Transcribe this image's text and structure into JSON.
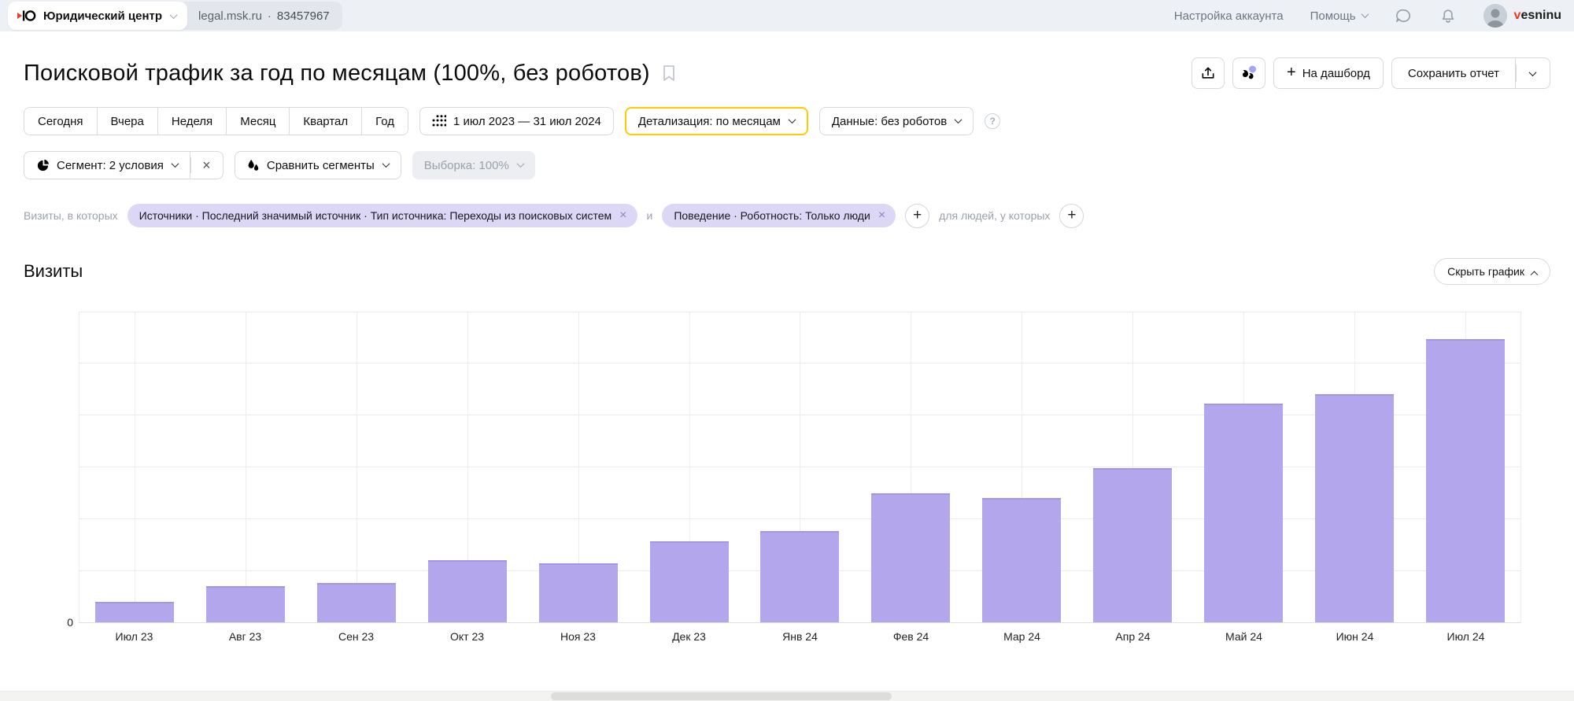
{
  "header": {
    "counter_name": "Юридический центр",
    "domain": "legal.msk.ru",
    "separator": "·",
    "counter_id": "83457967",
    "nav": {
      "account_settings": "Настройка аккаунта",
      "help": "Помощь",
      "username_first": "v",
      "username_rest": "esninu"
    }
  },
  "report": {
    "title": "Поисковой трафик за год по месяцам (100%, без роботов)",
    "add_dashboard_plus": "+",
    "add_dashboard_label": "На дашборд",
    "save_report_label": "Сохранить отчет"
  },
  "period_tabs": [
    "Сегодня",
    "Вчера",
    "Неделя",
    "Месяц",
    "Квартал",
    "Год"
  ],
  "filters": {
    "date_range": "1 июл 2023 — 31 июл 2024",
    "detail_label": "Детализация: по месяцам",
    "data_label": "Данные: без роботов",
    "help_glyph": "?",
    "segment_label": "Сегмент: 2 условия",
    "segment_remove": "×",
    "compare_label": "Сравнить сегменты",
    "sample_label": "Выборка: 100%"
  },
  "conditions": {
    "visits_prefix": "Визиты, в которых",
    "and_connector": "и",
    "people_prefix": "для людей, у которых",
    "add_glyph": "+",
    "chips": [
      {
        "label": "Источники · Последний значимый источник · Тип источника: Переходы из поисковых систем",
        "remove": "×"
      },
      {
        "label": "Поведение · Роботность: Только люди",
        "remove": "×"
      }
    ]
  },
  "section": {
    "title": "Визиты",
    "hide_chart_label": "Скрыть график"
  },
  "chart_data": {
    "type": "bar",
    "title": "Визиты",
    "categories": [
      "Июл 23",
      "Авг 23",
      "Сен 23",
      "Окт 23",
      "Ноя 23",
      "Дек 23",
      "Янв 24",
      "Фев 24",
      "Мар 24",
      "Апр 24",
      "Май 24",
      "Июн 24",
      "Июл 24"
    ],
    "values": [
      6.5,
      11.6,
      12.6,
      19.9,
      18.9,
      26.0,
      29.2,
      41.3,
      40.0,
      49.5,
      70.3,
      73.2,
      90.9
    ],
    "values_note": "relative bar heights in % of y-axis max; absolute counts are not labeled in the UI",
    "xlabel": "",
    "ylabel": "",
    "y_axis_labels": [
      "0"
    ],
    "grid": true,
    "gridline_rows": 6,
    "bar_color": "#b4a6ec",
    "legend": "none"
  },
  "colors": {
    "topbar_bg": "#edf0f4",
    "bar_fill": "#b4a6ec",
    "chip_bg": "#ddd7f6",
    "highlight_border": "#ffcc00",
    "username_accent": "#ec3b23",
    "gridline": "#ececec"
  }
}
